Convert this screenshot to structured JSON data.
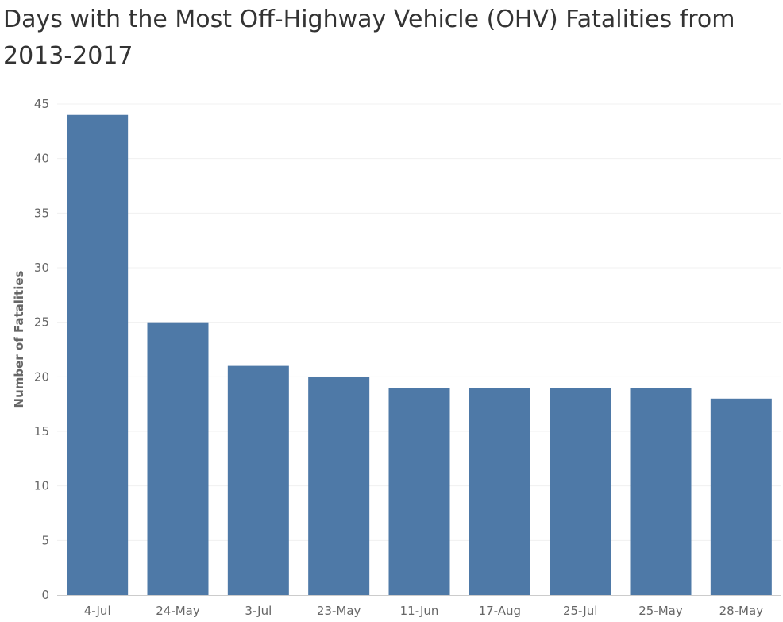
{
  "chart_data": {
    "type": "bar",
    "title": "Days with the Most Off-Highway Vehicle (OHV) Fatalities from 2013-2017",
    "ylabel": "Number of Fatalities",
    "xlabel": "",
    "categories": [
      "4-Jul",
      "24-May",
      "3-Jul",
      "23-May",
      "11-Jun",
      "17-Aug",
      "25-Jul",
      "25-May",
      "28-May"
    ],
    "values": [
      44,
      25,
      21,
      20,
      19,
      19,
      19,
      19,
      18
    ],
    "ylim": [
      0,
      45
    ],
    "yticks": [
      0,
      5,
      10,
      15,
      20,
      25,
      30,
      35,
      40,
      45
    ],
    "grid": true,
    "bar_color": "#4e79a7",
    "gridline_color": "#f0f0f0",
    "axis_color": "#666666"
  }
}
